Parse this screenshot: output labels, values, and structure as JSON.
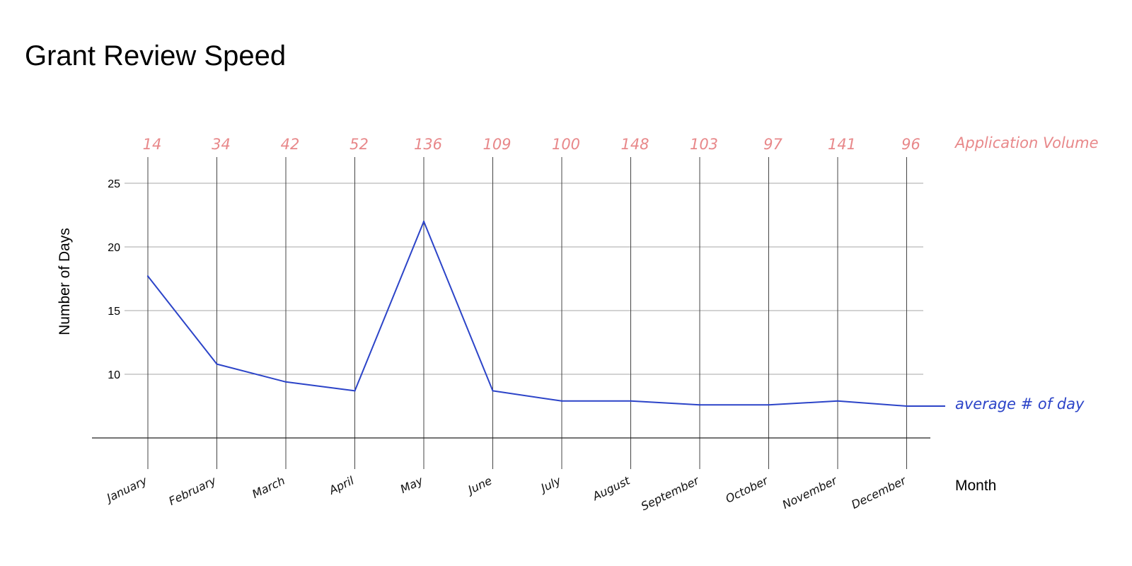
{
  "chart_data": {
    "type": "line",
    "title": "Grant Review Speed",
    "xlabel": "Month",
    "ylabel": "Number of Days",
    "categories": [
      "January",
      "February",
      "March",
      "April",
      "May",
      "June",
      "July",
      "August",
      "September",
      "October",
      "November",
      "December"
    ],
    "series": [
      {
        "name": "average # of day",
        "values": [
          17.7,
          10.8,
          9.4,
          8.7,
          22.0,
          8.7,
          7.9,
          7.9,
          7.6,
          7.6,
          7.9,
          7.5
        ],
        "color": "#2c44c8"
      }
    ],
    "secondary_labels": {
      "name": "Application Volume",
      "values": [
        "14",
        "34",
        "42",
        "52",
        "136",
        "109",
        "100",
        "148",
        "103",
        "97",
        "141",
        "96"
      ],
      "color": "#e8888a"
    },
    "yticks": [
      "10",
      "15",
      "20",
      "25"
    ],
    "ylim": [
      5,
      25
    ],
    "grid": true
  }
}
